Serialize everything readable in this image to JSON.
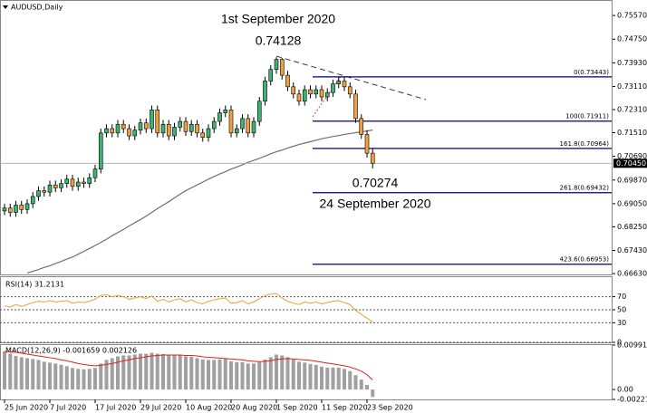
{
  "chart_data": [
    {
      "type": "candlestick",
      "title": "AUDUSD,Daily",
      "categories": [
        "25 Jun 2020",
        null,
        null,
        null,
        null,
        null,
        null,
        null,
        "7 Jul 2020",
        null,
        null,
        null,
        null,
        null,
        null,
        null,
        "17 Jul 2020",
        null,
        null,
        null,
        null,
        null,
        null,
        null,
        "29 Jul 2020",
        null,
        null,
        null,
        null,
        null,
        null,
        null,
        "10 Aug 2020",
        null,
        null,
        null,
        null,
        null,
        null,
        null,
        "20 Aug 2020",
        null,
        null,
        null,
        null,
        null,
        null,
        null,
        "1 Sep 2020",
        null,
        null,
        null,
        null,
        null,
        null,
        null,
        "11 Sep 2020",
        null,
        null,
        null,
        null,
        null,
        null,
        null,
        "23 Sep 2020",
        null
      ],
      "open": [
        0.688,
        0.689,
        0.6875,
        0.69,
        0.6885,
        0.6905,
        0.693,
        0.695,
        0.6945,
        0.697,
        0.696,
        0.6975,
        0.699,
        0.6965,
        0.698,
        0.6975,
        0.6995,
        0.7025,
        0.715,
        0.7165,
        0.715,
        0.718,
        0.7165,
        0.714,
        0.716,
        0.7185,
        0.7165,
        0.723,
        0.715,
        0.718,
        0.714,
        0.717,
        0.719,
        0.7155,
        0.718,
        0.715,
        0.7135,
        0.7165,
        0.719,
        0.722,
        0.723,
        0.715,
        0.7165,
        0.72,
        0.715,
        0.719,
        0.726,
        0.733,
        0.737,
        0.7405,
        0.735,
        0.731,
        0.7285,
        0.726,
        0.73,
        0.7285,
        0.73,
        0.7275,
        0.729,
        0.732,
        0.733,
        0.731,
        0.7285,
        0.72,
        0.7145,
        0.708
      ],
      "high": [
        0.6905,
        0.6905,
        0.6915,
        0.6915,
        0.692,
        0.6945,
        0.6965,
        0.6965,
        0.6985,
        0.6985,
        0.699,
        0.7005,
        0.7005,
        0.6995,
        0.6995,
        0.701,
        0.704,
        0.7165,
        0.718,
        0.718,
        0.7195,
        0.7195,
        0.718,
        0.7175,
        0.72,
        0.72,
        0.7245,
        0.7245,
        0.7195,
        0.7195,
        0.7185,
        0.7205,
        0.7205,
        0.7195,
        0.7195,
        0.7165,
        0.718,
        0.7205,
        0.7235,
        0.7245,
        0.7245,
        0.718,
        0.7215,
        0.7215,
        0.7205,
        0.7275,
        0.7345,
        0.7385,
        0.74128,
        0.741,
        0.7365,
        0.7325,
        0.73,
        0.7315,
        0.7315,
        0.7315,
        0.7315,
        0.7305,
        0.7335,
        0.7345,
        0.7345,
        0.7325,
        0.73,
        0.7215,
        0.716,
        0.7095
      ],
      "low": [
        0.6865,
        0.686,
        0.686,
        0.687,
        0.687,
        0.689,
        0.6915,
        0.693,
        0.693,
        0.6945,
        0.6945,
        0.696,
        0.695,
        0.695,
        0.696,
        0.696,
        0.698,
        0.701,
        0.7135,
        0.7135,
        0.7135,
        0.715,
        0.7125,
        0.7125,
        0.7145,
        0.715,
        0.715,
        0.7135,
        0.7135,
        0.7125,
        0.7125,
        0.7155,
        0.714,
        0.714,
        0.7135,
        0.712,
        0.712,
        0.715,
        0.7175,
        0.7205,
        0.7135,
        0.7135,
        0.715,
        0.7135,
        0.7135,
        0.7175,
        0.7245,
        0.7315,
        0.7355,
        0.7335,
        0.7295,
        0.727,
        0.7245,
        0.7245,
        0.727,
        0.727,
        0.726,
        0.726,
        0.7275,
        0.7305,
        0.7295,
        0.727,
        0.7185,
        0.713,
        0.7065,
        0.70274
      ],
      "close": [
        0.689,
        0.6875,
        0.69,
        0.6885,
        0.6905,
        0.693,
        0.695,
        0.6945,
        0.697,
        0.696,
        0.6975,
        0.699,
        0.6965,
        0.698,
        0.6975,
        0.6995,
        0.7025,
        0.715,
        0.7165,
        0.715,
        0.718,
        0.7165,
        0.714,
        0.716,
        0.7185,
        0.7165,
        0.723,
        0.715,
        0.718,
        0.714,
        0.717,
        0.719,
        0.7155,
        0.718,
        0.715,
        0.7135,
        0.7165,
        0.719,
        0.722,
        0.723,
        0.715,
        0.7165,
        0.72,
        0.715,
        0.719,
        0.726,
        0.733,
        0.737,
        0.7405,
        0.735,
        0.731,
        0.7285,
        0.726,
        0.73,
        0.7285,
        0.73,
        0.7275,
        0.729,
        0.732,
        0.733,
        0.731,
        0.7285,
        0.72,
        0.7145,
        0.708,
        0.7045
      ],
      "up_color": "#3cb371",
      "down_color": "#f0a040",
      "moving_average": {
        "color": "#707070",
        "values": [
          null,
          null,
          null,
          null,
          0.6665,
          0.6671,
          0.6677,
          0.6684,
          0.669,
          0.6698,
          0.6705,
          0.6713,
          0.672,
          0.673,
          0.674,
          0.675,
          0.676,
          0.6771,
          0.6782,
          0.6794,
          0.6805,
          0.6816,
          0.6828,
          0.6839,
          0.685,
          0.6862,
          0.6875,
          0.6888,
          0.69,
          0.6912,
          0.6925,
          0.6938,
          0.695,
          0.696,
          0.697,
          0.698,
          0.699,
          0.6999,
          0.7008,
          0.7016,
          0.7025,
          0.7032,
          0.704,
          0.7048,
          0.7055,
          0.7062,
          0.707,
          0.7078,
          0.7085,
          0.7091,
          0.7098,
          0.7104,
          0.711,
          0.7115,
          0.712,
          0.7125,
          0.713,
          0.7134,
          0.7138,
          0.7141,
          0.7145,
          0.7148,
          0.7151,
          0.7154,
          0.7157,
          0.716
        ]
      },
      "last_price": {
        "value": 0.7045,
        "label": "0.70450"
      },
      "fibonacci": {
        "color": "#000080",
        "levels": [
          {
            "value": 0.73443,
            "label": "0(0.73443)"
          },
          {
            "value": 0.71911,
            "label": "100(0.71911)"
          },
          {
            "value": 0.70964,
            "label": "161.8(0.70964)"
          },
          {
            "value": 0.69432,
            "label": "261.8(0.69432)"
          },
          {
            "value": 0.66953,
            "label": "423.6(0.66953)"
          }
        ]
      },
      "peak_date": "1st September 2020",
      "peak_price": 0.74128,
      "trough_price": 0.70274,
      "trough_date": "24 September 2020",
      "ylim": [
        0.666,
        0.7595
      ],
      "yticks": [
        {
          "value": 0.7557,
          "label": "0.75570"
        },
        {
          "value": 0.7475,
          "label": "0.74750"
        },
        {
          "value": 0.7393,
          "label": "0.73930"
        },
        {
          "value": 0.7311,
          "label": "0.73110"
        },
        {
          "value": 0.7231,
          "label": "0.72310"
        },
        {
          "value": 0.7151,
          "label": "0.71510"
        },
        {
          "value": 0.7069,
          "label": "0.70690"
        },
        {
          "value": 0.6987,
          "label": "0.69870"
        },
        {
          "value": 0.6905,
          "label": "0.69050"
        },
        {
          "value": 0.6825,
          "label": "0.68250"
        },
        {
          "value": 0.6743,
          "label": "0.67430"
        },
        {
          "value": 0.6663,
          "label": "0.66630"
        }
      ]
    },
    {
      "type": "line",
      "title": "RSI(14) 31.2131",
      "color": "#f0a030",
      "values": [
        56,
        54,
        58,
        55,
        58,
        61,
        63,
        62,
        64,
        62,
        63,
        64,
        60,
        62,
        61,
        63,
        66,
        72,
        73,
        70,
        72,
        70,
        66,
        68,
        70,
        67,
        71,
        63,
        66,
        62,
        65,
        67,
        62,
        65,
        61,
        59,
        63,
        65,
        67,
        68,
        60,
        61,
        64,
        59,
        62,
        67,
        72,
        74,
        75,
        68,
        63,
        60,
        58,
        62,
        60,
        62,
        59,
        61,
        63,
        64,
        61,
        58,
        49,
        43,
        37,
        31.2131
      ],
      "ylim": [
        0,
        100
      ],
      "yticks": [
        70,
        50,
        30,
        0
      ],
      "grid": true
    },
    {
      "type": "bar",
      "title": "MACD(12,26,9) -0.001659 0.002126",
      "color": "#a0a0a0",
      "values": [
        0.0085,
        0.008,
        0.0075,
        0.0072,
        0.007,
        0.0068,
        0.0066,
        0.0062,
        0.006,
        0.0058,
        0.0055,
        0.0052,
        0.0048,
        0.0046,
        0.0045,
        0.0046,
        0.0048,
        0.0058,
        0.0066,
        0.007,
        0.0074,
        0.0076,
        0.0076,
        0.0078,
        0.008,
        0.008,
        0.0082,
        0.008,
        0.0079,
        0.0077,
        0.0076,
        0.0076,
        0.0074,
        0.0073,
        0.007,
        0.0067,
        0.0066,
        0.0066,
        0.0067,
        0.0068,
        0.0063,
        0.0061,
        0.0061,
        0.0058,
        0.0058,
        0.0061,
        0.0067,
        0.0072,
        0.0078,
        0.0076,
        0.0072,
        0.0067,
        0.0062,
        0.006,
        0.0057,
        0.0055,
        0.0051,
        0.0049,
        0.0049,
        0.0049,
        0.0046,
        0.0041,
        0.0032,
        0.0022,
        0.001,
        -0.001659
      ],
      "signal": {
        "color": "#e02020",
        "values": [
          0.0085,
          0.0084,
          0.0083,
          0.0081,
          0.0079,
          0.0077,
          0.0075,
          0.0073,
          0.0071,
          0.0069,
          0.0066,
          0.0064,
          0.0061,
          0.0058,
          0.0056,
          0.0054,
          0.0053,
          0.0054,
          0.0056,
          0.0058,
          0.0061,
          0.0064,
          0.0066,
          0.0069,
          0.0071,
          0.0073,
          0.0075,
          0.0076,
          0.0077,
          0.0077,
          0.0077,
          0.0077,
          0.0076,
          0.0076,
          0.0075,
          0.0073,
          0.0072,
          0.0071,
          0.007,
          0.0069,
          0.0068,
          0.0067,
          0.0066,
          0.0064,
          0.0063,
          0.0062,
          0.0063,
          0.0064,
          0.0067,
          0.0068,
          0.0069,
          0.0068,
          0.0067,
          0.0066,
          0.0065,
          0.0063,
          0.0061,
          0.0059,
          0.0057,
          0.0055,
          0.0053,
          0.005,
          0.0046,
          0.0041,
          0.0033,
          0.002126
        ]
      },
      "ylim": [
        -0.00221,
        0.009916
      ],
      "yticks": [
        0.009916,
        {
          "value": 0,
          "label": "0.00"
        },
        -0.00221
      ]
    }
  ]
}
